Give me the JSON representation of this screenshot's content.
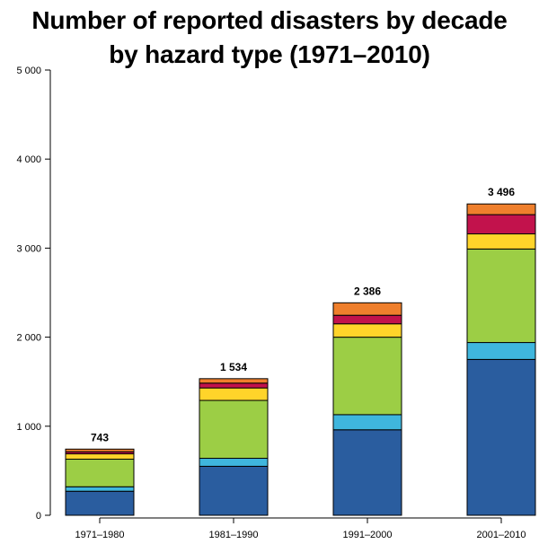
{
  "chart_data": {
    "type": "bar",
    "stacked": true,
    "title_line1": "Number of reported disasters by decade",
    "title_line2": "by hazard type (1971–2010)",
    "xlabel": "",
    "ylabel": "",
    "ylim": [
      0,
      5000
    ],
    "yticks": [
      0,
      1000,
      2000,
      3000,
      4000,
      5000
    ],
    "ytick_labels": [
      "0",
      "1 000",
      "2 000",
      "3 000",
      "4 000",
      "5 000"
    ],
    "categories": [
      "1971–1980",
      "1981–1990",
      "1991–2000",
      "2001–2010"
    ],
    "totals": [
      743,
      1534,
      2386,
      3496
    ],
    "total_labels": [
      "743",
      "1 534",
      "2 386",
      "3 496"
    ],
    "series": [
      {
        "color": "#2a5d9f",
        "values": [
          270,
          550,
          960,
          1750
        ]
      },
      {
        "color": "#3fb6dd",
        "values": [
          50,
          90,
          170,
          190
        ]
      },
      {
        "color": "#9cce45",
        "values": [
          310,
          650,
          870,
          1050
        ]
      },
      {
        "color": "#ffd42a",
        "values": [
          60,
          140,
          150,
          170
        ]
      },
      {
        "color": "#c2124c",
        "values": [
          23,
          54,
          96,
          216
        ]
      },
      {
        "color": "#ef7f2c",
        "values": [
          30,
          50,
          140,
          120
        ]
      }
    ],
    "grid": false,
    "legend": "none"
  }
}
